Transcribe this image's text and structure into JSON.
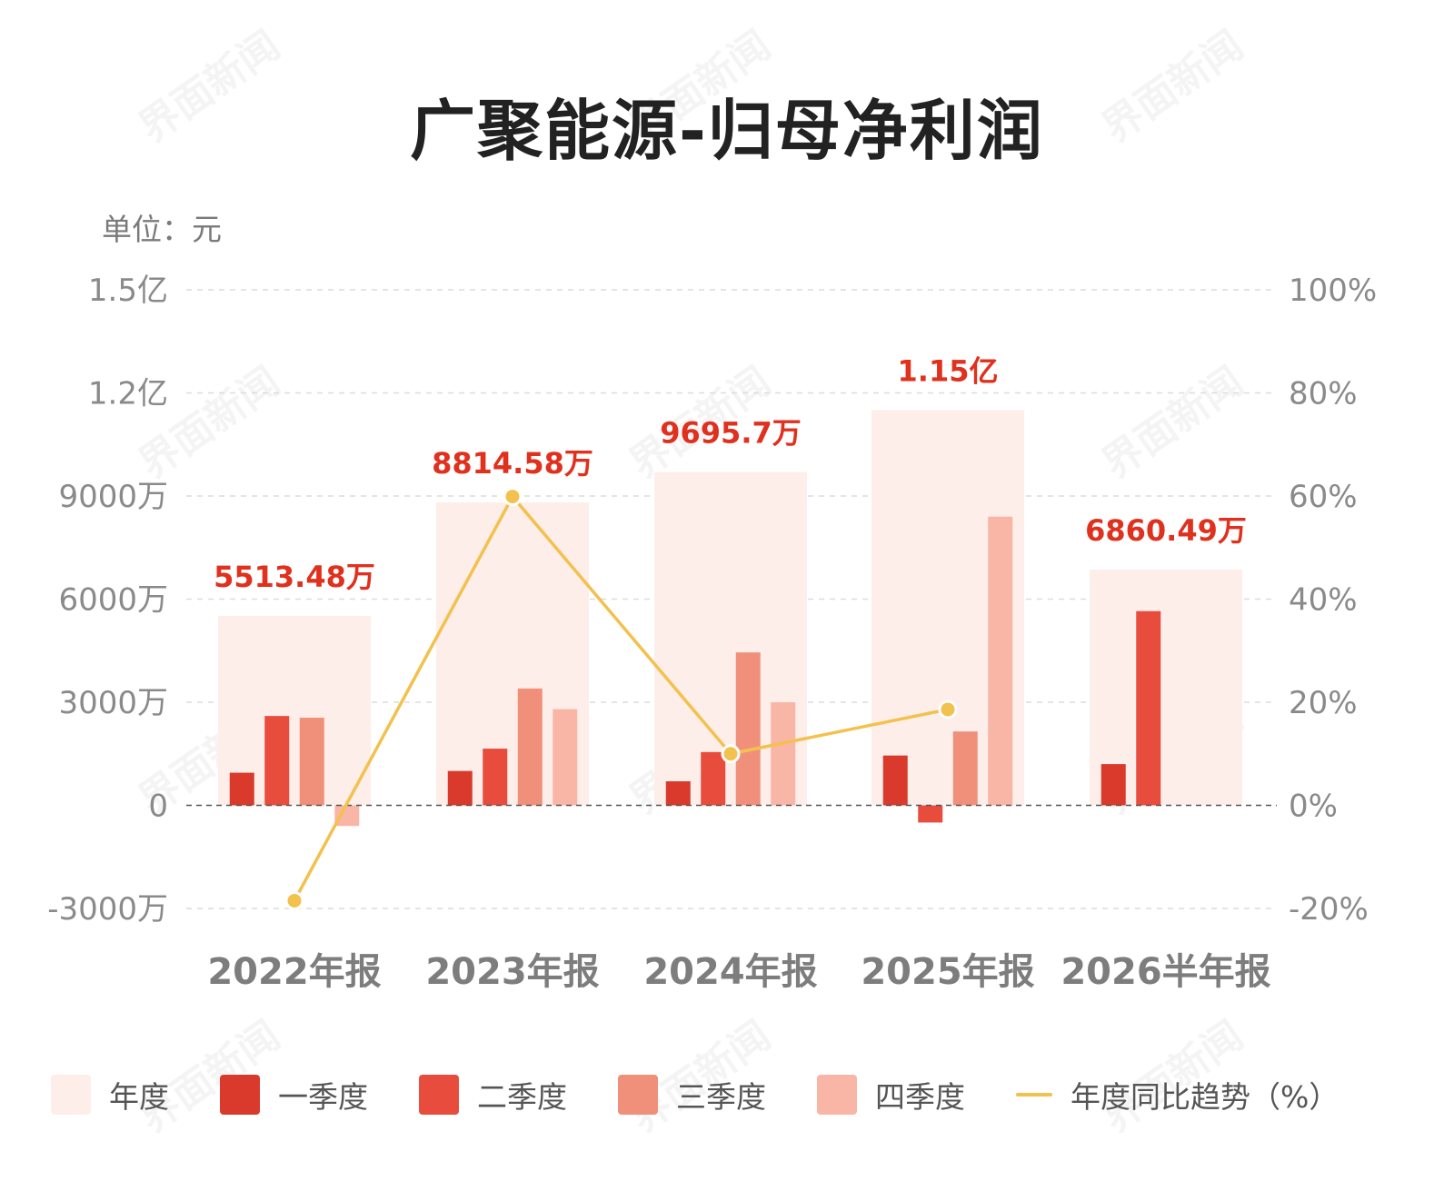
{
  "title": "广聚能源-归母净利润",
  "unit_label": "单位：元",
  "watermark_text": "界面新闻",
  "colors": {
    "annual": "#fdeeea",
    "q1": "#d93a2b",
    "q2": "#e84c3d",
    "q3": "#f0907b",
    "q4": "#f9b6a6",
    "trend": "#f2c14e",
    "total_label": "#e0301e",
    "axis_text": "#8a8a8a",
    "grid": "#dcdcdc"
  },
  "legend": [
    {
      "key": "annual",
      "label": "年度",
      "kind": "swatch"
    },
    {
      "key": "q1",
      "label": "一季度",
      "kind": "swatch"
    },
    {
      "key": "q2",
      "label": "二季度",
      "kind": "swatch"
    },
    {
      "key": "q3",
      "label": "三季度",
      "kind": "swatch"
    },
    {
      "key": "q4",
      "label": "四季度",
      "kind": "swatch"
    },
    {
      "key": "trend",
      "label": "年度同比趋势（%）",
      "kind": "line"
    }
  ],
  "chart_data": {
    "type": "bar",
    "categories": [
      "2022年报",
      "2023年报",
      "2024年报",
      "2025年报",
      "2026半年报"
    ],
    "y_left": {
      "min": -30000000,
      "max": 150000000,
      "ticks": [
        -30000000,
        0,
        30000000,
        60000000,
        90000000,
        120000000,
        150000000
      ],
      "tick_labels": [
        "-3000万",
        "0",
        "3000万",
        "6000万",
        "9000万",
        "1.2亿",
        "1.5亿"
      ]
    },
    "y_right": {
      "min": -20,
      "max": 100,
      "ticks": [
        -20,
        0,
        20,
        40,
        60,
        80,
        100
      ],
      "tick_labels": [
        "-20%",
        "0%",
        "20%",
        "40%",
        "60%",
        "80%",
        "100%"
      ]
    },
    "annual": {
      "values": [
        55134800,
        88145800,
        96957000,
        115000000,
        68604900
      ],
      "labels": [
        "5513.48万",
        "8814.58万",
        "9695.7万",
        "1.15亿",
        "6860.49万"
      ]
    },
    "series": [
      {
        "key": "q1",
        "name": "一季度",
        "values": [
          9500000,
          10000000,
          7000000,
          14500000,
          12000000
        ]
      },
      {
        "key": "q2",
        "name": "二季度",
        "values": [
          26000000,
          16500000,
          15500000,
          -5000000,
          56500000
        ]
      },
      {
        "key": "q3",
        "name": "三季度",
        "values": [
          25500000,
          34000000,
          44500000,
          21500000,
          null
        ]
      },
      {
        "key": "q4",
        "name": "四季度",
        "values": [
          -6000000,
          28000000,
          30000000,
          84000000,
          null
        ]
      }
    ],
    "trend": {
      "name": "年度同比趋势（%）",
      "values": [
        -18.5,
        59.9,
        10.0,
        18.6,
        null
      ]
    },
    "grid": true,
    "legend_position": "bottom"
  }
}
